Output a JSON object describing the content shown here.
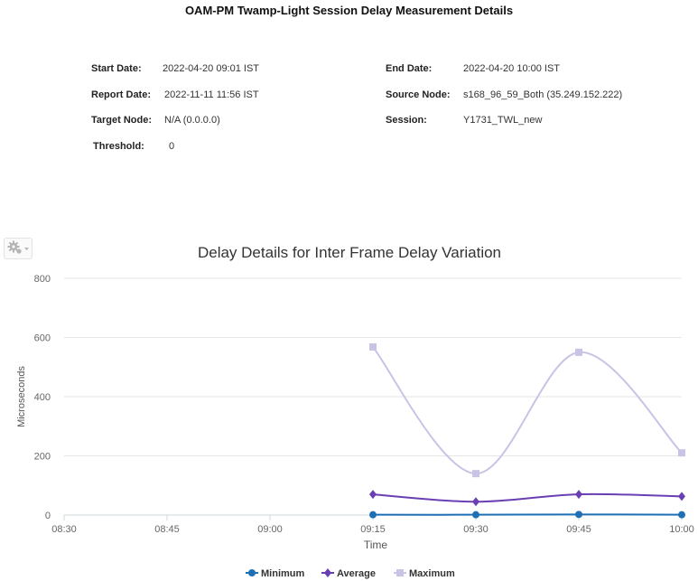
{
  "report": {
    "title": "OAM-PM Twamp-Light Session Delay Measurement Details",
    "fields": {
      "start_date": {
        "label": "Start Date:",
        "value": "2022-04-20 09:01 IST"
      },
      "end_date": {
        "label": "End Date:",
        "value": "2022-04-20 10:00 IST"
      },
      "report_date": {
        "label": "Report Date:",
        "value": "2022-11-11 11:56 IST"
      },
      "source_node": {
        "label": "Source Node:",
        "value": "s168_96_59_Both (35.249.152.222)"
      },
      "target_node": {
        "label": "Target Node:",
        "value": "N/A (0.0.0.0)"
      },
      "session": {
        "label": "Session:",
        "value": "Y1731_TWL_new"
      },
      "threshold": {
        "label": "Threshold:",
        "value": "0"
      }
    }
  },
  "toolbar": {
    "menu_icon": "gear-icon"
  },
  "chart_data": {
    "type": "line",
    "title": "Delay Details for Inter Frame Delay Variation",
    "xlabel": "Time",
    "ylabel": "Microseconds",
    "x_ticks": [
      "08:30",
      "08:45",
      "09:00",
      "09:15",
      "09:30",
      "09:45",
      "10:00"
    ],
    "x": [
      "09:15",
      "09:30",
      "09:45",
      "10:00"
    ],
    "ylim": [
      0,
      800
    ],
    "y_ticks": [
      0,
      200,
      400,
      600,
      800
    ],
    "grid": true,
    "legend_position": "bottom",
    "series": [
      {
        "name": "Minimum",
        "color": "#1f6fb5",
        "marker": "circle",
        "values": [
          1,
          1,
          2,
          1
        ]
      },
      {
        "name": "Average",
        "color": "#6a3fb4",
        "marker": "diamond",
        "values": [
          70,
          45,
          70,
          63
        ]
      },
      {
        "name": "Maximum",
        "color": "#c9c3e6",
        "marker": "square",
        "values": [
          568,
          140,
          550,
          210
        ]
      }
    ]
  }
}
